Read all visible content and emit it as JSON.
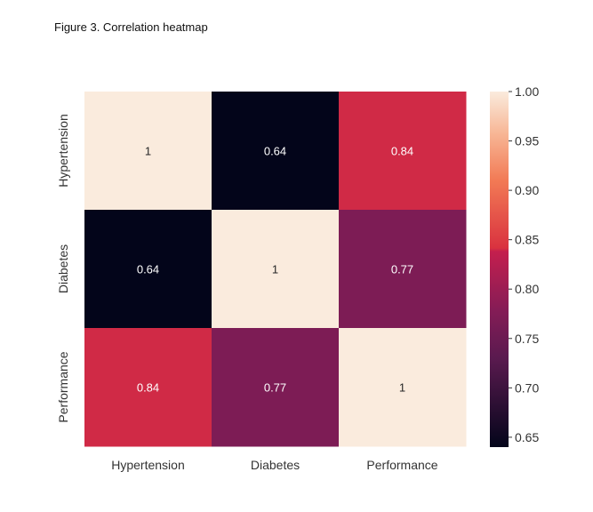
{
  "caption": "Figure 3. Correlation heatmap",
  "chart_data": {
    "type": "heatmap",
    "title": "",
    "xlabel": "",
    "ylabel": "",
    "x_categories": [
      "Hypertension",
      "Diabetes",
      "Performance"
    ],
    "y_categories": [
      "Hypertension",
      "Diabetes",
      "Performance"
    ],
    "values": [
      [
        1,
        0.64,
        0.84
      ],
      [
        0.64,
        1,
        0.77
      ],
      [
        0.84,
        0.77,
        1
      ]
    ],
    "cell_labels": [
      [
        "1",
        "0.64",
        "0.84"
      ],
      [
        "0.64",
        "1",
        "0.77"
      ],
      [
        "0.84",
        "0.77",
        "1"
      ]
    ],
    "colorbar": {
      "range": [
        0.64,
        1.0
      ],
      "ticks": [
        1.0,
        0.95,
        0.9,
        0.85,
        0.8,
        0.75,
        0.7,
        0.65
      ],
      "tick_labels": [
        "1.00",
        "0.95",
        "0.90",
        "0.85",
        "0.80",
        "0.75",
        "0.70",
        "0.65"
      ]
    },
    "colormap": {
      "name": "rocket",
      "stops": [
        {
          "v": 0.0,
          "color": "#03051a"
        },
        {
          "v": 0.25,
          "color": "#5a1a4f"
        },
        {
          "v": 0.38,
          "color": "#831c56"
        },
        {
          "v": 0.55,
          "color": "#c41f4e"
        },
        {
          "v": 0.56,
          "color": "#d9323f"
        },
        {
          "v": 0.75,
          "color": "#f27a55"
        },
        {
          "v": 0.88,
          "color": "#f7b594"
        },
        {
          "v": 1.0,
          "color": "#faebdd"
        }
      ]
    },
    "annotation_colors": {
      "on_dark": "#ffffff",
      "on_light": "#262626"
    },
    "grid": false
  }
}
